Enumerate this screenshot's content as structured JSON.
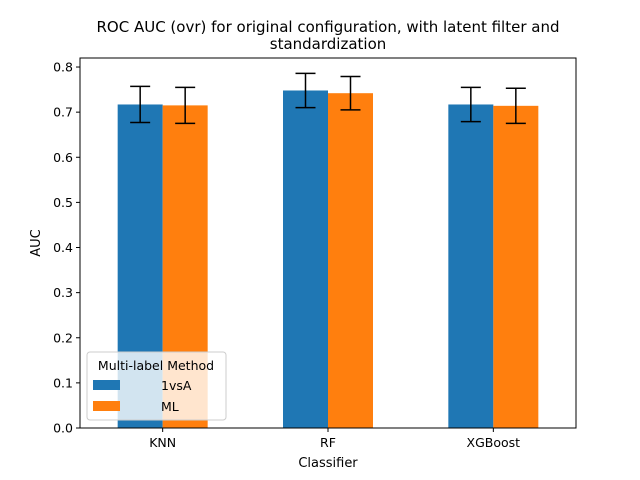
{
  "chart_data": {
    "type": "bar",
    "title": "ROC AUC (ovr) for original configuration, with latent filter and\nstandardization",
    "xlabel": "Classifier",
    "ylabel": "AUC",
    "categories": [
      "KNN",
      "RF",
      "XGBoost"
    ],
    "ylim": [
      0,
      0.82
    ],
    "yticks": [
      0.0,
      0.1,
      0.2,
      0.3,
      0.4,
      0.5,
      0.6,
      0.7,
      0.8
    ],
    "ytick_labels": [
      "0.0",
      "0.1",
      "0.2",
      "0.3",
      "0.4",
      "0.5",
      "0.6",
      "0.7",
      "0.8"
    ],
    "series": [
      {
        "name": "1vsA",
        "color": "#1f77b4",
        "values": [
          0.717,
          0.748,
          0.717
        ],
        "errors": [
          0.04,
          0.038,
          0.038
        ]
      },
      {
        "name": "ML",
        "color": "#ff7f0e",
        "values": [
          0.715,
          0.742,
          0.714
        ],
        "errors": [
          0.04,
          0.037,
          0.039
        ]
      }
    ],
    "legend": {
      "title": "Multi-label Method",
      "placement": "lower-left"
    },
    "grid": false
  }
}
